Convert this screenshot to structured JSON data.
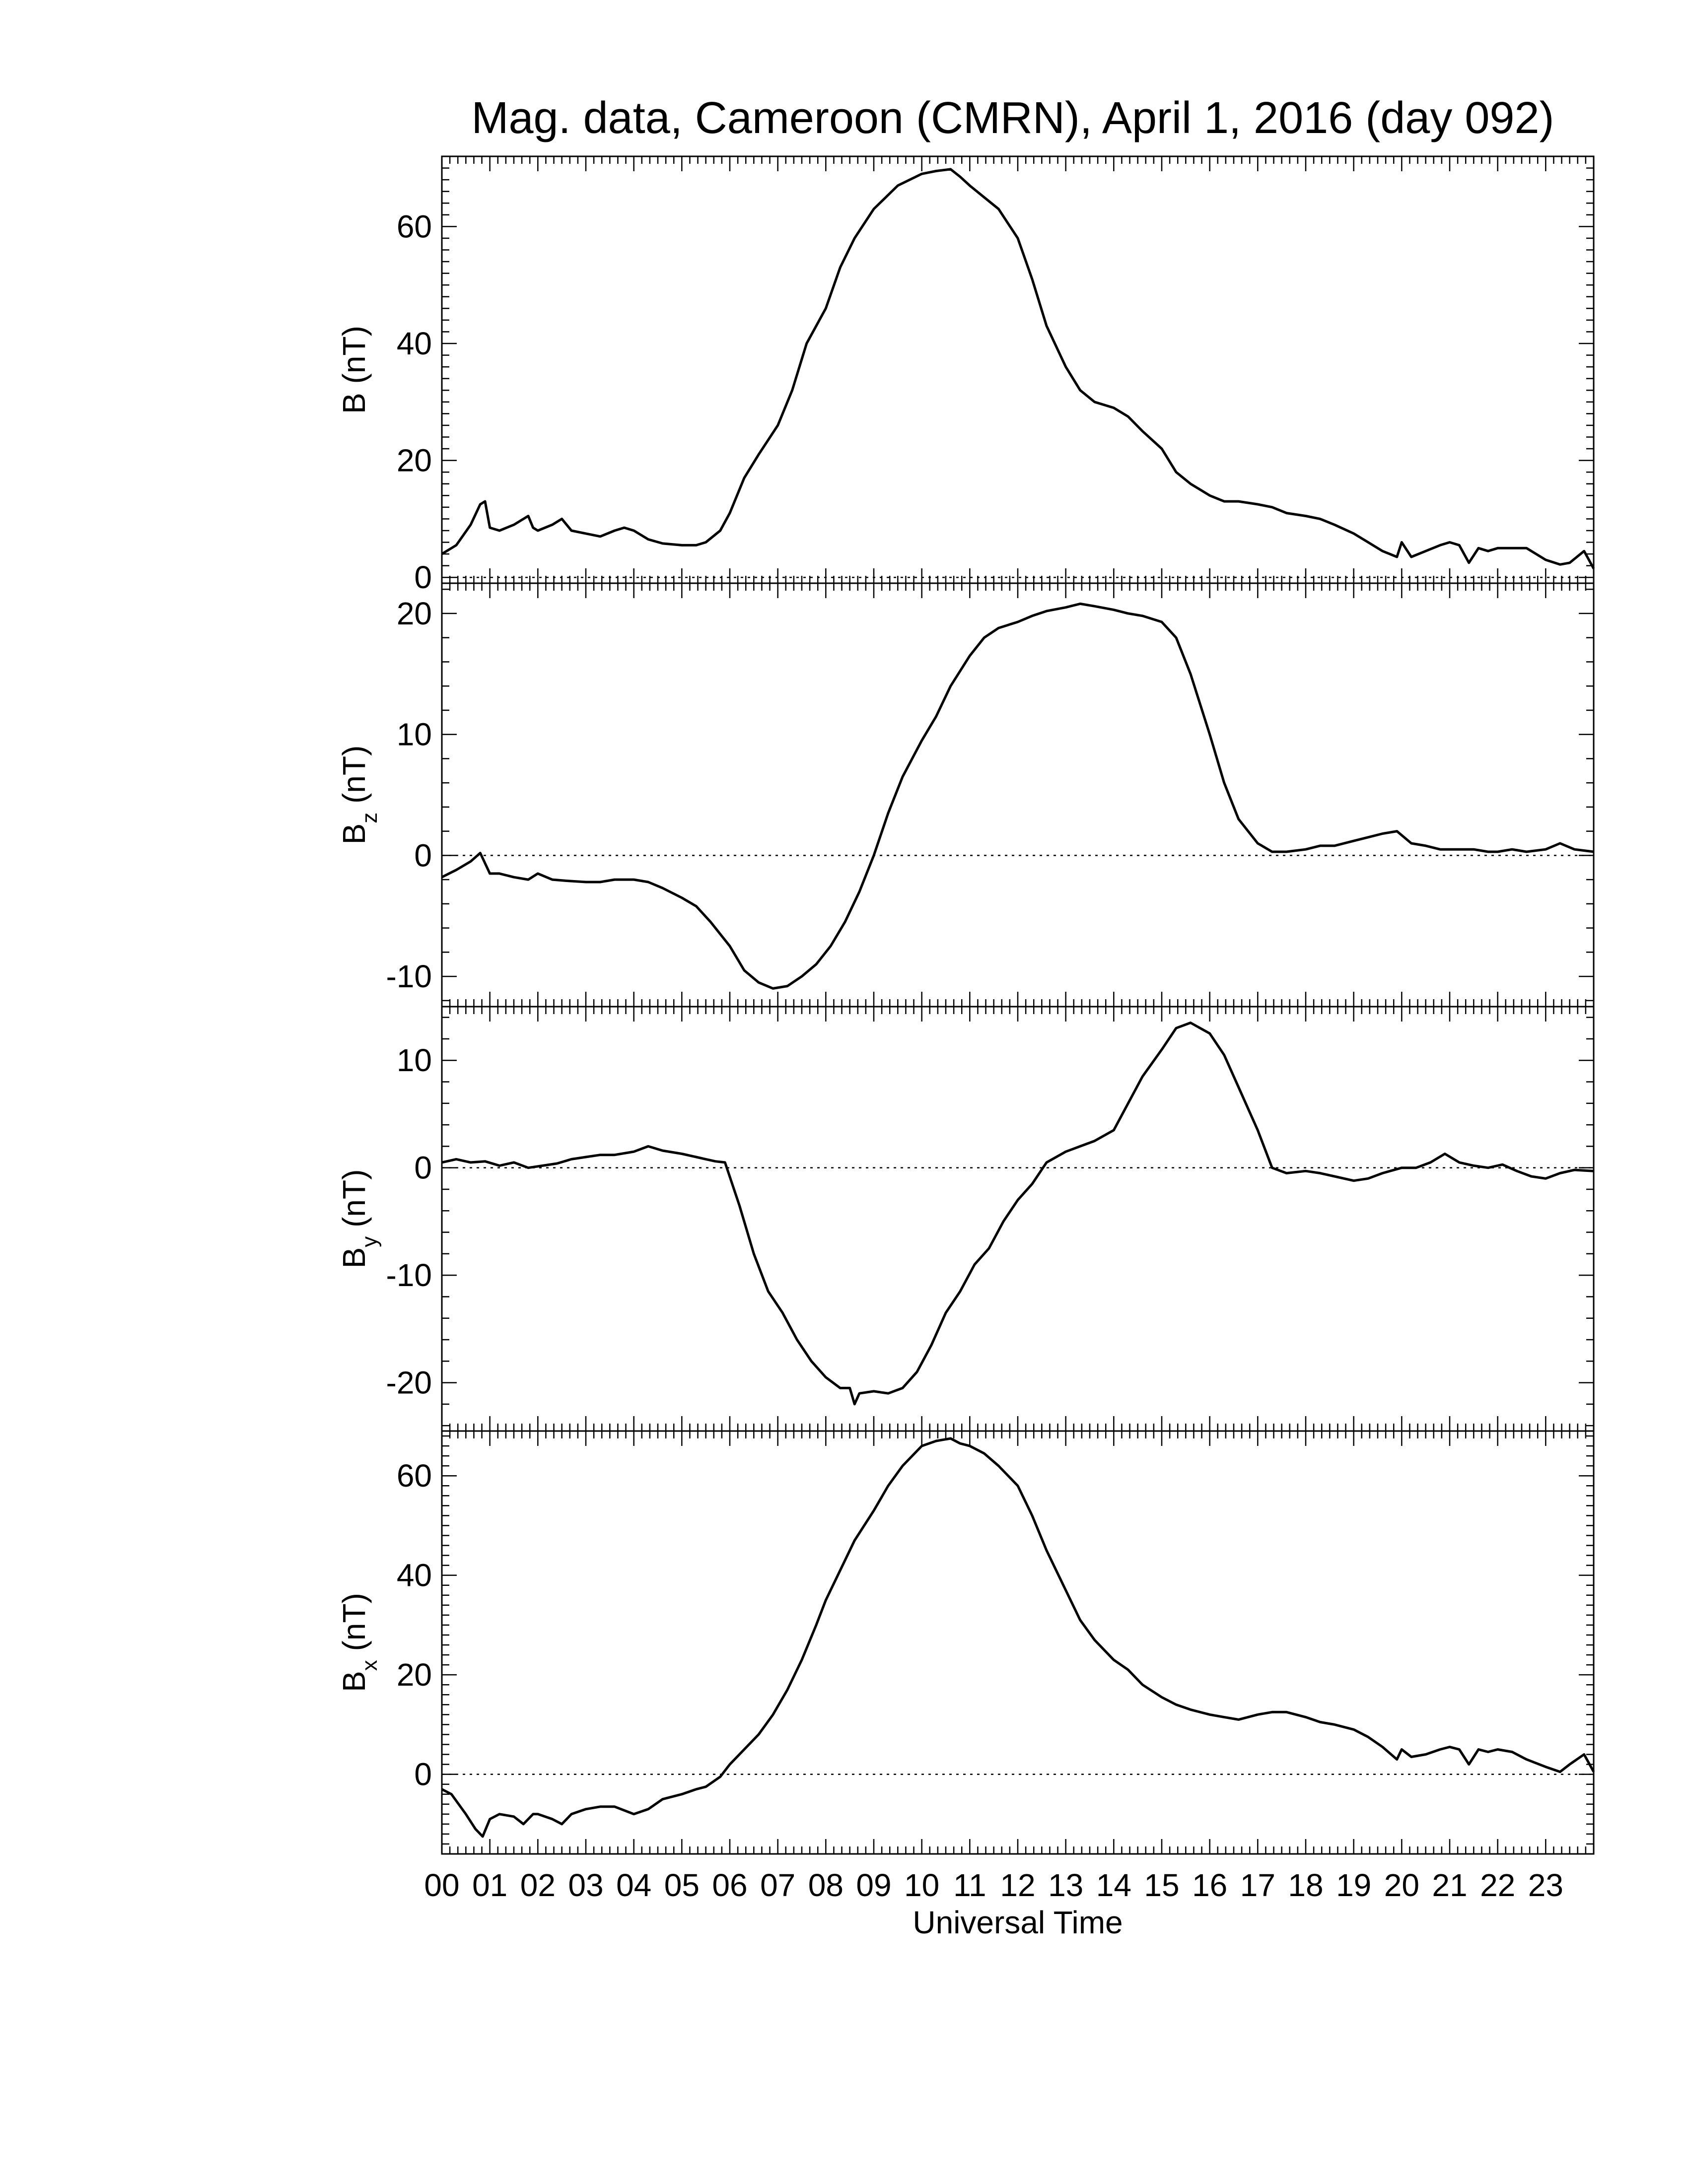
{
  "chart_data": {
    "type": "line",
    "title": "Mag. data, Cameroon (CMRN), April 1, 2016 (day 092)",
    "xlabel": "Universal Time",
    "x_tick_labels": [
      "00",
      "01",
      "02",
      "03",
      "04",
      "05",
      "06",
      "07",
      "08",
      "09",
      "10",
      "11",
      "12",
      "13",
      "14",
      "15",
      "16",
      "17",
      "18",
      "19",
      "20",
      "21",
      "22",
      "23"
    ],
    "xlim": [
      0,
      24
    ],
    "x_unit": "hours UT",
    "zero_reference_line": "dotted",
    "panels": [
      {
        "id": "B",
        "ylabel_main": "B",
        "ylabel_sub": "",
        "ylabel_unit": " (nT)",
        "ylim": [
          -1,
          72
        ],
        "yticks": [
          0,
          20,
          40,
          60
        ],
        "ytick_labels": [
          "0",
          "20",
          "40",
          "60"
        ],
        "series": [
          {
            "x": [
              0,
              0.3,
              0.6,
              0.8,
              0.9,
              1.0,
              1.2,
              1.5,
              1.8,
              1.9,
              2.0,
              2.3,
              2.5,
              2.7,
              3.0,
              3.3,
              3.6,
              3.8,
              4.0,
              4.3,
              4.6,
              5.0,
              5.3,
              5.5,
              5.8,
              6.0,
              6.3,
              6.6,
              7.0,
              7.3,
              7.6,
              8.0,
              8.3,
              8.6,
              9.0,
              9.5,
              10.0,
              10.3,
              10.6,
              10.8,
              11.0,
              11.3,
              11.6,
              12.0,
              12.3,
              12.6,
              13.0,
              13.3,
              13.6,
              14.0,
              14.3,
              14.6,
              15.0,
              15.3,
              15.6,
              16.0,
              16.3,
              16.6,
              17.0,
              17.3,
              17.6,
              18.0,
              18.3,
              18.6,
              19.0,
              19.3,
              19.6,
              19.9,
              20.0,
              20.2,
              20.5,
              20.8,
              21.0,
              21.2,
              21.4,
              21.6,
              21.8,
              22.0,
              22.3,
              22.6,
              23.0,
              23.3,
              23.5,
              23.8,
              24.0
            ],
            "y": [
              4,
              5.5,
              9,
              12.5,
              13,
              8.5,
              8,
              9,
              10.5,
              8.5,
              8,
              9,
              10,
              8,
              7.5,
              7,
              8,
              8.5,
              8,
              6.5,
              5.8,
              5.5,
              5.5,
              6,
              8,
              11,
              17,
              21,
              26,
              32,
              40,
              46,
              53,
              58,
              63,
              67,
              69,
              69.5,
              69.8,
              68.5,
              67,
              65,
              63,
              58,
              51,
              43,
              36,
              32,
              30,
              29,
              27.5,
              25,
              22,
              18,
              16,
              14,
              13,
              13,
              12.5,
              12,
              11,
              10.5,
              10,
              9,
              7.5,
              6,
              4.5,
              3.5,
              6,
              3.5,
              4.5,
              5.5,
              6,
              5.5,
              2.5,
              5,
              4.5,
              5,
              5,
              5,
              3,
              2.2,
              2.5,
              4.5,
              1.5
            ]
          }
        ]
      },
      {
        "id": "Bz",
        "ylabel_main": "B",
        "ylabel_sub": "z",
        "ylabel_unit": " (nT)",
        "ylim": [
          -12.5,
          22.5
        ],
        "yticks": [
          -10,
          0,
          10,
          20
        ],
        "ytick_labels": [
          "-10",
          "0",
          "10",
          "20"
        ],
        "series": [
          {
            "x": [
              0,
              0.3,
              0.6,
              0.8,
              1.0,
              1.2,
              1.5,
              1.8,
              2.0,
              2.3,
              2.6,
              3.0,
              3.3,
              3.6,
              4.0,
              4.3,
              4.6,
              5.0,
              5.3,
              5.6,
              6.0,
              6.3,
              6.6,
              6.9,
              7.2,
              7.5,
              7.8,
              8.1,
              8.4,
              8.7,
              9.0,
              9.3,
              9.6,
              10.0,
              10.3,
              10.6,
              11.0,
              11.3,
              11.6,
              12.0,
              12.3,
              12.6,
              13.0,
              13.3,
              13.6,
              14.0,
              14.3,
              14.6,
              15.0,
              15.3,
              15.6,
              16.0,
              16.3,
              16.6,
              17.0,
              17.3,
              17.6,
              18.0,
              18.3,
              18.6,
              19.0,
              19.3,
              19.6,
              19.9,
              20.2,
              20.5,
              20.8,
              21.2,
              21.5,
              21.8,
              22.0,
              22.3,
              22.6,
              23.0,
              23.3,
              23.6,
              24.0
            ],
            "y": [
              -1.8,
              -1.2,
              -0.5,
              0.2,
              -1.5,
              -1.5,
              -1.8,
              -2.0,
              -1.5,
              -2.0,
              -2.1,
              -2.2,
              -2.2,
              -2.0,
              -2.0,
              -2.2,
              -2.7,
              -3.5,
              -4.2,
              -5.5,
              -7.5,
              -9.5,
              -10.5,
              -11.0,
              -10.8,
              -10.0,
              -9.0,
              -7.5,
              -5.5,
              -3.0,
              0.0,
              3.5,
              6.5,
              9.5,
              11.5,
              14.0,
              16.5,
              18.0,
              18.8,
              19.3,
              19.8,
              20.2,
              20.5,
              20.8,
              20.6,
              20.3,
              20.0,
              19.8,
              19.3,
              18.0,
              15.0,
              10.0,
              6.0,
              3.0,
              1.0,
              0.3,
              0.3,
              0.5,
              0.8,
              0.8,
              1.2,
              1.5,
              1.8,
              2.0,
              1.0,
              0.8,
              0.5,
              0.5,
              0.5,
              0.3,
              0.3,
              0.5,
              0.3,
              0.5,
              1.0,
              0.5,
              0.3
            ]
          }
        ]
      },
      {
        "id": "By",
        "ylabel_main": "B",
        "ylabel_sub": "y",
        "ylabel_unit": " (nT)",
        "ylim": [
          -24.5,
          15.0
        ],
        "yticks": [
          -20,
          -10,
          0,
          10
        ],
        "ytick_labels": [
          "-20",
          "-10",
          "0",
          "10"
        ],
        "series": [
          {
            "x": [
              0,
              0.3,
              0.6,
              0.9,
              1.2,
              1.5,
              1.8,
              2.1,
              2.4,
              2.7,
              3.0,
              3.3,
              3.6,
              4.0,
              4.3,
              4.6,
              5.0,
              5.3,
              5.5,
              5.7,
              5.9,
              6.2,
              6.5,
              6.8,
              7.1,
              7.4,
              7.7,
              8.0,
              8.3,
              8.5,
              8.6,
              8.7,
              9.0,
              9.3,
              9.6,
              9.9,
              10.2,
              10.5,
              10.8,
              11.1,
              11.4,
              11.7,
              12.0,
              12.3,
              12.6,
              13.0,
              13.3,
              13.6,
              14.0,
              14.3,
              14.6,
              15.0,
              15.3,
              15.6,
              16.0,
              16.3,
              16.6,
              17.0,
              17.3,
              17.6,
              18.0,
              18.3,
              18.6,
              19.0,
              19.3,
              19.6,
              20.0,
              20.3,
              20.6,
              20.9,
              21.2,
              21.5,
              21.8,
              22.1,
              22.4,
              22.7,
              23.0,
              23.3,
              23.6,
              24.0
            ],
            "y": [
              0.5,
              0.8,
              0.5,
              0.6,
              0.2,
              0.5,
              0.0,
              0.2,
              0.4,
              0.8,
              1.0,
              1.2,
              1.2,
              1.5,
              2.0,
              1.6,
              1.3,
              1.0,
              0.8,
              0.6,
              0.5,
              -3.5,
              -8.0,
              -11.5,
              -13.5,
              -16.0,
              -18.0,
              -19.5,
              -20.5,
              -20.5,
              -22.0,
              -21.0,
              -20.8,
              -21.0,
              -20.5,
              -19.0,
              -16.5,
              -13.5,
              -11.5,
              -9.0,
              -7.5,
              -5.0,
              -3.0,
              -1.5,
              0.5,
              1.5,
              2.0,
              2.5,
              3.5,
              6.0,
              8.5,
              11.0,
              13.0,
              13.5,
              12.5,
              10.5,
              7.5,
              3.5,
              0.0,
              -0.5,
              -0.3,
              -0.5,
              -0.8,
              -1.2,
              -1.0,
              -0.5,
              0.0,
              0.0,
              0.5,
              1.3,
              0.5,
              0.2,
              0.0,
              0.3,
              -0.3,
              -0.8,
              -1.0,
              -0.5,
              -0.2,
              -0.3
            ]
          }
        ]
      },
      {
        "id": "Bx",
        "ylabel_main": "B",
        "ylabel_sub": "x",
        "ylabel_unit": " (nT)",
        "ylim": [
          -16,
          69
        ],
        "yticks": [
          0,
          20,
          40,
          60
        ],
        "ytick_labels": [
          "0",
          "20",
          "40",
          "60"
        ],
        "series": [
          {
            "x": [
              0,
              0.2,
              0.5,
              0.7,
              0.85,
              1.0,
              1.2,
              1.5,
              1.7,
              1.9,
              2.0,
              2.3,
              2.5,
              2.7,
              3.0,
              3.3,
              3.6,
              4.0,
              4.3,
              4.6,
              5.0,
              5.3,
              5.5,
              5.8,
              6.0,
              6.3,
              6.6,
              6.9,
              7.2,
              7.5,
              7.8,
              8.0,
              8.3,
              8.6,
              9.0,
              9.3,
              9.6,
              10.0,
              10.3,
              10.6,
              10.8,
              11.0,
              11.3,
              11.6,
              12.0,
              12.3,
              12.6,
              13.0,
              13.3,
              13.6,
              14.0,
              14.3,
              14.6,
              15.0,
              15.3,
              15.6,
              16.0,
              16.3,
              16.6,
              17.0,
              17.3,
              17.6,
              18.0,
              18.3,
              18.6,
              19.0,
              19.3,
              19.6,
              19.9,
              20.0,
              20.2,
              20.5,
              20.8,
              21.0,
              21.2,
              21.4,
              21.6,
              21.8,
              22.0,
              22.3,
              22.6,
              23.0,
              23.3,
              23.5,
              23.8,
              24.0
            ],
            "y": [
              -3,
              -4,
              -8,
              -11,
              -12.5,
              -9,
              -8,
              -8.5,
              -10,
              -8,
              -8,
              -9,
              -10,
              -8,
              -7,
              -6.5,
              -6.5,
              -8,
              -7,
              -5,
              -4,
              -3,
              -2.5,
              -0.5,
              2,
              5,
              8,
              12,
              17,
              23,
              30,
              35,
              41,
              47,
              53,
              58,
              62,
              66,
              67,
              67.5,
              66.5,
              66,
              64.5,
              62,
              58,
              52,
              45,
              37,
              31,
              27,
              23,
              21,
              18,
              15.5,
              14,
              13,
              12,
              11.5,
              11,
              12,
              12.5,
              12.5,
              11.5,
              10.5,
              10,
              9,
              7.5,
              5.5,
              3,
              5,
              3.5,
              4,
              5,
              5.5,
              5,
              2,
              5,
              4.5,
              5,
              4.5,
              3,
              1.5,
              0.5,
              2,
              4,
              0.5
            ]
          }
        ]
      }
    ]
  }
}
